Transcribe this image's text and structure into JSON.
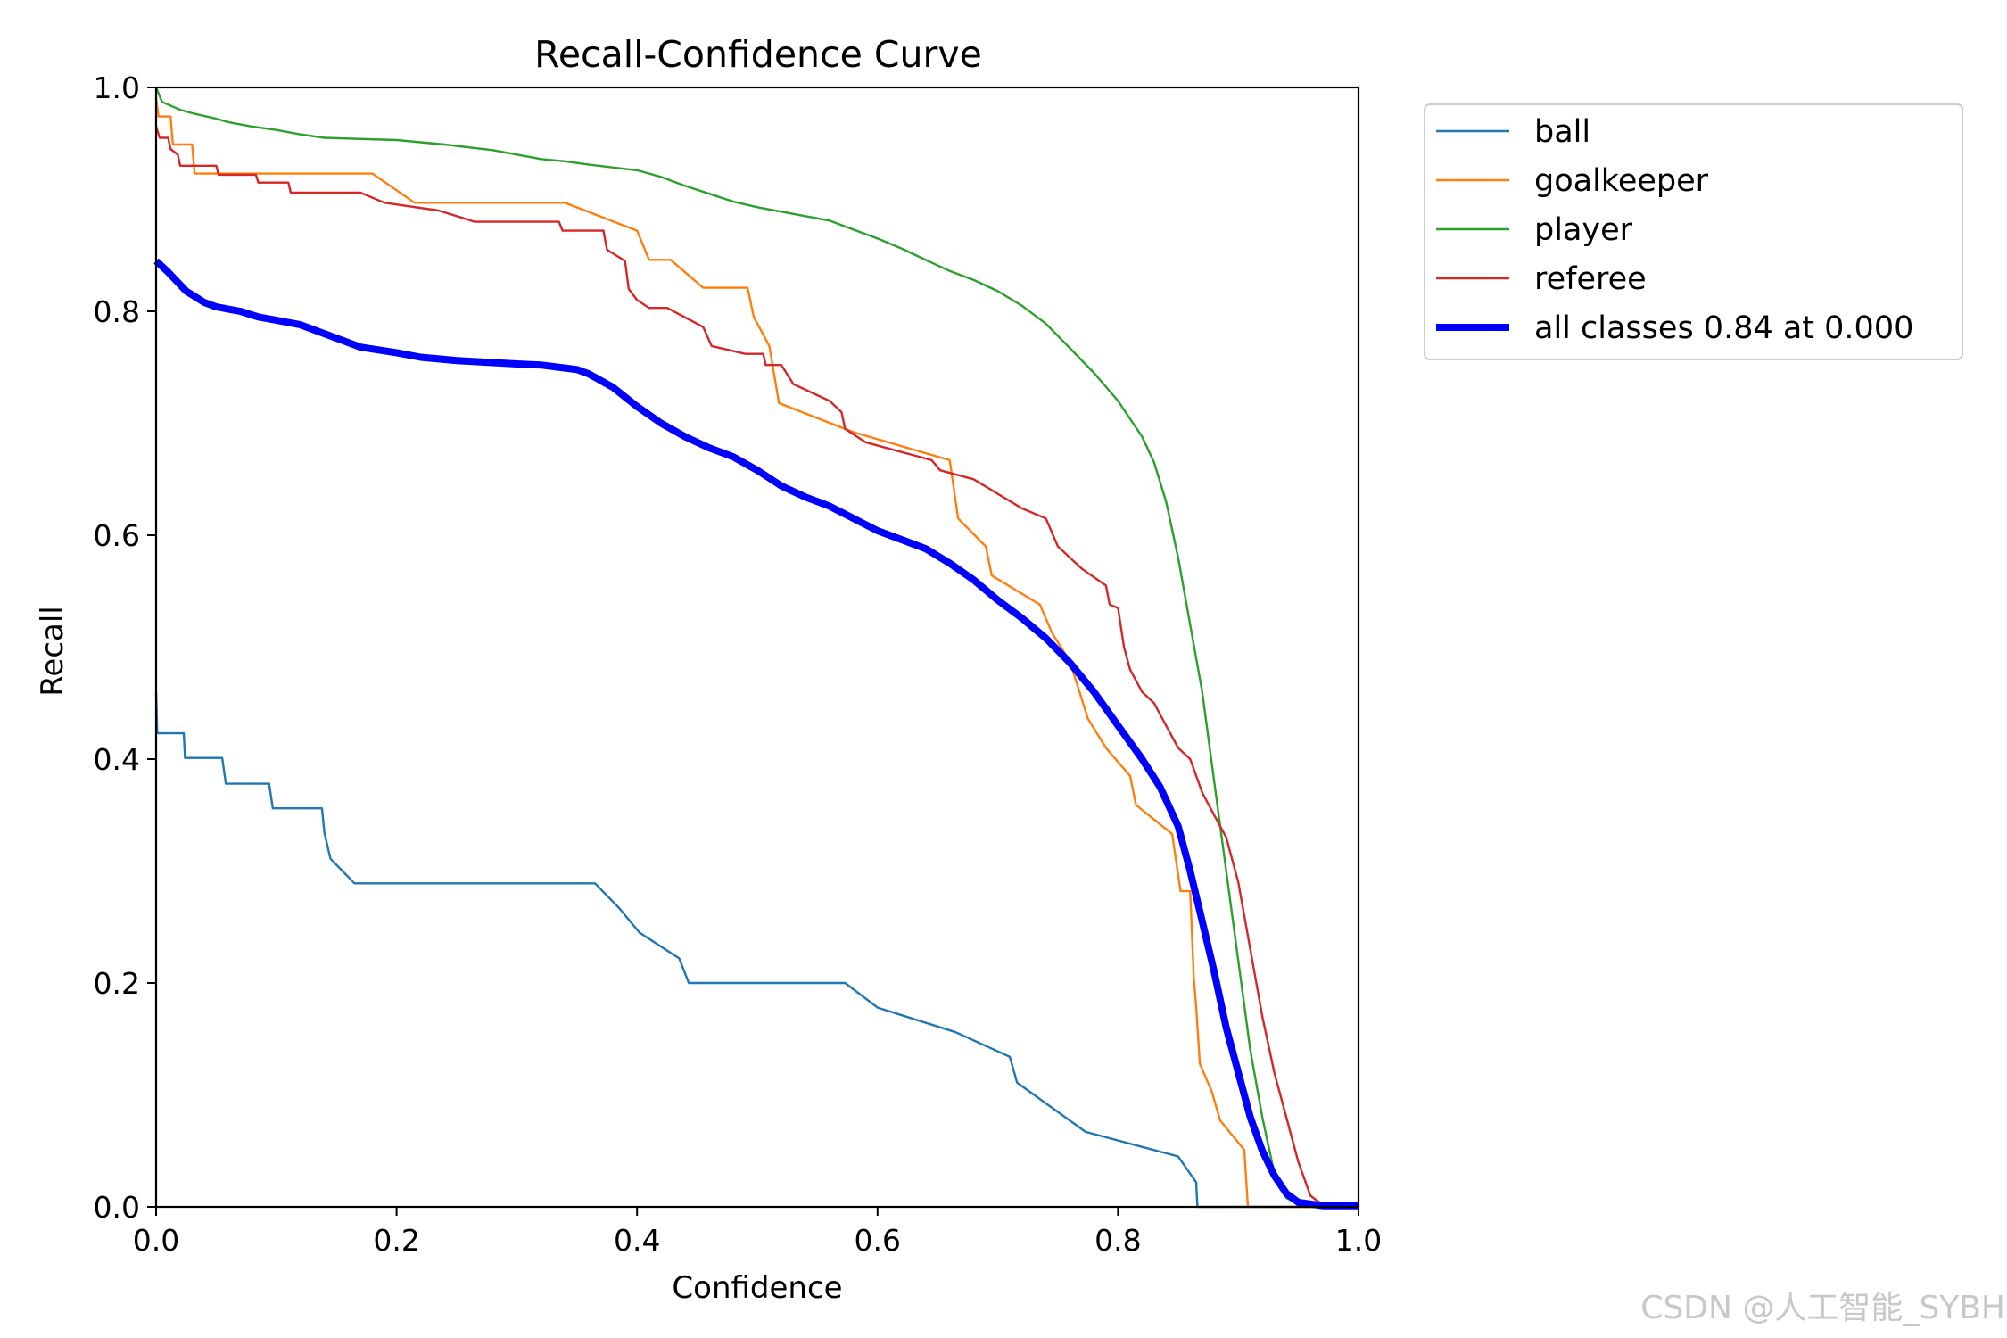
{
  "chart_data": {
    "type": "line",
    "title": "Recall-Confidence Curve",
    "xlabel": "Confidence",
    "ylabel": "Recall",
    "xlim": [
      0,
      1
    ],
    "ylim": [
      0,
      1
    ],
    "xticks": [
      "0.0",
      "0.2",
      "0.4",
      "0.6",
      "0.8",
      "1.0"
    ],
    "yticks": [
      "0.0",
      "0.2",
      "0.4",
      "0.6",
      "0.8",
      "1.0"
    ],
    "grid": false,
    "legend_position": "outside-top-right",
    "series": [
      {
        "name": "ball",
        "color": "#1f77b4",
        "width": "thin",
        "points": [
          [
            0,
            0.46
          ],
          [
            0.001,
            0.423
          ],
          [
            0.023,
            0.423
          ],
          [
            0.024,
            0.401
          ],
          [
            0.055,
            0.401
          ],
          [
            0.058,
            0.378
          ],
          [
            0.094,
            0.378
          ],
          [
            0.097,
            0.356
          ],
          [
            0.138,
            0.356
          ],
          [
            0.14,
            0.334
          ],
          [
            0.145,
            0.311
          ],
          [
            0.165,
            0.289
          ],
          [
            0.365,
            0.289
          ],
          [
            0.385,
            0.267
          ],
          [
            0.402,
            0.245
          ],
          [
            0.435,
            0.222
          ],
          [
            0.443,
            0.2
          ],
          [
            0.573,
            0.2
          ],
          [
            0.6,
            0.178
          ],
          [
            0.665,
            0.156
          ],
          [
            0.71,
            0.134
          ],
          [
            0.716,
            0.111
          ],
          [
            0.773,
            0.067
          ],
          [
            0.85,
            0.045
          ],
          [
            0.865,
            0.022
          ],
          [
            0.866,
            0
          ],
          [
            1.0,
            0
          ]
        ]
      },
      {
        "name": "goalkeeper",
        "color": "#ff7f0e",
        "width": "thin",
        "points": [
          [
            0,
            0.99
          ],
          [
            0.002,
            0.974
          ],
          [
            0.012,
            0.974
          ],
          [
            0.014,
            0.949
          ],
          [
            0.03,
            0.949
          ],
          [
            0.032,
            0.923
          ],
          [
            0.18,
            0.923
          ],
          [
            0.215,
            0.897
          ],
          [
            0.34,
            0.897
          ],
          [
            0.4,
            0.872
          ],
          [
            0.41,
            0.846
          ],
          [
            0.428,
            0.846
          ],
          [
            0.455,
            0.821
          ],
          [
            0.492,
            0.821
          ],
          [
            0.497,
            0.795
          ],
          [
            0.51,
            0.769
          ],
          [
            0.518,
            0.718
          ],
          [
            0.58,
            0.692
          ],
          [
            0.66,
            0.667
          ],
          [
            0.667,
            0.615
          ],
          [
            0.69,
            0.59
          ],
          [
            0.695,
            0.564
          ],
          [
            0.735,
            0.538
          ],
          [
            0.745,
            0.513
          ],
          [
            0.76,
            0.487
          ],
          [
            0.775,
            0.436
          ],
          [
            0.79,
            0.41
          ],
          [
            0.81,
            0.385
          ],
          [
            0.815,
            0.359
          ],
          [
            0.845,
            0.333
          ],
          [
            0.852,
            0.282
          ],
          [
            0.86,
            0.282
          ],
          [
            0.863,
            0.205
          ],
          [
            0.865,
            0.179
          ],
          [
            0.868,
            0.128
          ],
          [
            0.878,
            0.103
          ],
          [
            0.885,
            0.077
          ],
          [
            0.905,
            0.051
          ],
          [
            0.908,
            0
          ],
          [
            1.0,
            0
          ]
        ]
      },
      {
        "name": "player",
        "color": "#2ca02c",
        "width": "thin",
        "points": [
          [
            0,
            1.0
          ],
          [
            0.005,
            0.987
          ],
          [
            0.02,
            0.98
          ],
          [
            0.03,
            0.977
          ],
          [
            0.05,
            0.972
          ],
          [
            0.06,
            0.969
          ],
          [
            0.08,
            0.965
          ],
          [
            0.1,
            0.962
          ],
          [
            0.12,
            0.958
          ],
          [
            0.14,
            0.955
          ],
          [
            0.2,
            0.953
          ],
          [
            0.24,
            0.949
          ],
          [
            0.28,
            0.944
          ],
          [
            0.3,
            0.94
          ],
          [
            0.32,
            0.936
          ],
          [
            0.34,
            0.934
          ],
          [
            0.36,
            0.931
          ],
          [
            0.4,
            0.926
          ],
          [
            0.42,
            0.92
          ],
          [
            0.44,
            0.912
          ],
          [
            0.46,
            0.905
          ],
          [
            0.48,
            0.898
          ],
          [
            0.5,
            0.893
          ],
          [
            0.52,
            0.889
          ],
          [
            0.54,
            0.885
          ],
          [
            0.56,
            0.881
          ],
          [
            0.58,
            0.873
          ],
          [
            0.6,
            0.865
          ],
          [
            0.62,
            0.856
          ],
          [
            0.64,
            0.846
          ],
          [
            0.66,
            0.836
          ],
          [
            0.68,
            0.828
          ],
          [
            0.7,
            0.818
          ],
          [
            0.72,
            0.805
          ],
          [
            0.74,
            0.789
          ],
          [
            0.76,
            0.767
          ],
          [
            0.78,
            0.745
          ],
          [
            0.8,
            0.72
          ],
          [
            0.82,
            0.688
          ],
          [
            0.83,
            0.665
          ],
          [
            0.84,
            0.63
          ],
          [
            0.85,
            0.58
          ],
          [
            0.86,
            0.52
          ],
          [
            0.87,
            0.46
          ],
          [
            0.88,
            0.38
          ],
          [
            0.89,
            0.3
          ],
          [
            0.9,
            0.22
          ],
          [
            0.91,
            0.14
          ],
          [
            0.92,
            0.08
          ],
          [
            0.93,
            0.03
          ],
          [
            0.94,
            0.008
          ],
          [
            0.955,
            0
          ],
          [
            1.0,
            0
          ]
        ]
      },
      {
        "name": "referee",
        "color": "#d62728",
        "width": "thin",
        "points": [
          [
            0,
            0.965
          ],
          [
            0.003,
            0.955
          ],
          [
            0.01,
            0.955
          ],
          [
            0.012,
            0.945
          ],
          [
            0.018,
            0.94
          ],
          [
            0.02,
            0.93
          ],
          [
            0.05,
            0.93
          ],
          [
            0.052,
            0.922
          ],
          [
            0.083,
            0.922
          ],
          [
            0.085,
            0.915
          ],
          [
            0.11,
            0.915
          ],
          [
            0.112,
            0.906
          ],
          [
            0.17,
            0.906
          ],
          [
            0.19,
            0.897
          ],
          [
            0.235,
            0.89
          ],
          [
            0.265,
            0.88
          ],
          [
            0.335,
            0.88
          ],
          [
            0.338,
            0.872
          ],
          [
            0.372,
            0.872
          ],
          [
            0.375,
            0.855
          ],
          [
            0.39,
            0.845
          ],
          [
            0.393,
            0.82
          ],
          [
            0.4,
            0.81
          ],
          [
            0.41,
            0.803
          ],
          [
            0.425,
            0.803
          ],
          [
            0.455,
            0.786
          ],
          [
            0.462,
            0.769
          ],
          [
            0.49,
            0.762
          ],
          [
            0.505,
            0.762
          ],
          [
            0.507,
            0.752
          ],
          [
            0.52,
            0.752
          ],
          [
            0.53,
            0.735
          ],
          [
            0.56,
            0.72
          ],
          [
            0.57,
            0.71
          ],
          [
            0.573,
            0.695
          ],
          [
            0.59,
            0.683
          ],
          [
            0.645,
            0.667
          ],
          [
            0.652,
            0.658
          ],
          [
            0.68,
            0.65
          ],
          [
            0.7,
            0.637
          ],
          [
            0.72,
            0.624
          ],
          [
            0.74,
            0.615
          ],
          [
            0.75,
            0.59
          ],
          [
            0.77,
            0.57
          ],
          [
            0.79,
            0.555
          ],
          [
            0.793,
            0.538
          ],
          [
            0.8,
            0.535
          ],
          [
            0.805,
            0.5
          ],
          [
            0.81,
            0.48
          ],
          [
            0.82,
            0.46
          ],
          [
            0.83,
            0.45
          ],
          [
            0.84,
            0.43
          ],
          [
            0.85,
            0.41
          ],
          [
            0.86,
            0.4
          ],
          [
            0.87,
            0.37
          ],
          [
            0.88,
            0.35
          ],
          [
            0.89,
            0.33
          ],
          [
            0.9,
            0.29
          ],
          [
            0.91,
            0.23
          ],
          [
            0.92,
            0.17
          ],
          [
            0.93,
            0.12
          ],
          [
            0.94,
            0.08
          ],
          [
            0.95,
            0.04
          ],
          [
            0.96,
            0.01
          ],
          [
            0.97,
            0.002
          ],
          [
            1.0,
            0
          ]
        ]
      },
      {
        "name": "all classes 0.84 at 0.000",
        "color": "#0000ff",
        "width": "thick",
        "points": [
          [
            0,
            0.845
          ],
          [
            0.01,
            0.835
          ],
          [
            0.025,
            0.818
          ],
          [
            0.04,
            0.808
          ],
          [
            0.05,
            0.804
          ],
          [
            0.07,
            0.8
          ],
          [
            0.085,
            0.795
          ],
          [
            0.1,
            0.792
          ],
          [
            0.12,
            0.788
          ],
          [
            0.14,
            0.78
          ],
          [
            0.16,
            0.772
          ],
          [
            0.17,
            0.768
          ],
          [
            0.2,
            0.763
          ],
          [
            0.22,
            0.759
          ],
          [
            0.25,
            0.756
          ],
          [
            0.3,
            0.753
          ],
          [
            0.32,
            0.752
          ],
          [
            0.35,
            0.748
          ],
          [
            0.36,
            0.744
          ],
          [
            0.38,
            0.732
          ],
          [
            0.4,
            0.715
          ],
          [
            0.42,
            0.7
          ],
          [
            0.44,
            0.688
          ],
          [
            0.46,
            0.678
          ],
          [
            0.48,
            0.67
          ],
          [
            0.5,
            0.658
          ],
          [
            0.52,
            0.644
          ],
          [
            0.54,
            0.634
          ],
          [
            0.56,
            0.626
          ],
          [
            0.58,
            0.615
          ],
          [
            0.6,
            0.604
          ],
          [
            0.62,
            0.596
          ],
          [
            0.64,
            0.588
          ],
          [
            0.66,
            0.575
          ],
          [
            0.68,
            0.56
          ],
          [
            0.7,
            0.542
          ],
          [
            0.72,
            0.526
          ],
          [
            0.74,
            0.508
          ],
          [
            0.76,
            0.486
          ],
          [
            0.78,
            0.46
          ],
          [
            0.8,
            0.43
          ],
          [
            0.82,
            0.4
          ],
          [
            0.835,
            0.375
          ],
          [
            0.85,
            0.34
          ],
          [
            0.86,
            0.3
          ],
          [
            0.87,
            0.255
          ],
          [
            0.88,
            0.21
          ],
          [
            0.89,
            0.16
          ],
          [
            0.9,
            0.12
          ],
          [
            0.91,
            0.08
          ],
          [
            0.92,
            0.05
          ],
          [
            0.93,
            0.028
          ],
          [
            0.94,
            0.012
          ],
          [
            0.95,
            0.004
          ],
          [
            0.97,
            0.001
          ],
          [
            1.0,
            0.001
          ]
        ]
      }
    ],
    "watermark": "CSDN @人工智能_SYBH"
  }
}
